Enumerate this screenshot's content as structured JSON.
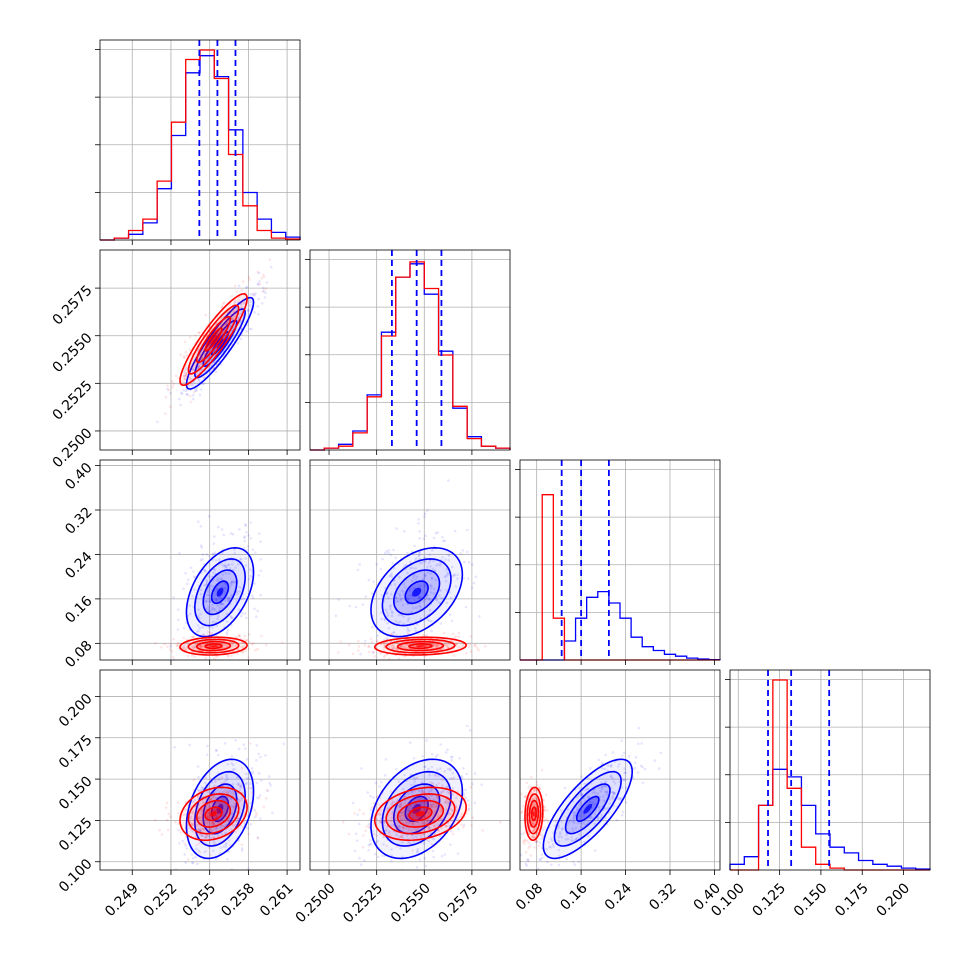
{
  "chart_data": {
    "type": "corner",
    "description_series": [
      {
        "name": "",
        "color": "#0000ff"
      },
      {
        "name": "",
        "color": "#ff0000"
      }
    ],
    "parameters": [
      {
        "ticks": [
          0.249,
          0.252,
          0.255,
          0.258,
          0.261
        ],
        "tick_labels": [
          "0.249",
          "0.252",
          "0.255",
          "0.258",
          "0.261"
        ],
        "range": [
          0.2465,
          0.262
        ]
      },
      {
        "ticks": [
          0.25,
          0.2525,
          0.255,
          0.2575
        ],
        "tick_labels": [
          "0.2500",
          "0.2525",
          "0.2550",
          "0.2575"
        ],
        "range": [
          0.249,
          0.2595
        ]
      },
      {
        "ticks": [
          0.08,
          0.16,
          0.24,
          0.32,
          0.4
        ],
        "tick_labels": [
          "0.08",
          "0.16",
          "0.24",
          "0.32",
          "0.40"
        ],
        "range": [
          0.05,
          0.41
        ]
      },
      {
        "ticks": [
          0.1,
          0.125,
          0.15,
          0.175,
          0.2
        ],
        "tick_labels": [
          "0.100",
          "0.125",
          "0.150",
          "0.175",
          "0.200"
        ],
        "range": [
          0.095,
          0.216
        ]
      }
    ],
    "grid": true,
    "series": [
      {
        "name": "",
        "color": "#0000ff",
        "means": [
          0.2558,
          0.2546,
          0.172,
          0.132
        ],
        "sigmas": [
          0.0013,
          0.0012,
          0.04,
          0.015
        ],
        "correlations": [
          [
            1,
            0.9,
            0.45,
            0.35
          ],
          [
            0.9,
            1,
            0.4,
            0.35
          ],
          [
            0.45,
            0.4,
            1,
            0.75
          ],
          [
            0.35,
            0.35,
            0.75,
            1
          ]
        ],
        "quantiles": [
          [
            0.2542,
            0.2556,
            0.257
          ],
          [
            0.2533,
            0.2546,
            0.2559
          ],
          [
            0.125,
            0.16,
            0.21
          ],
          [
            0.118,
            0.132,
            0.155
          ]
        ],
        "hist": [
          [
            0.0,
            0.01,
            0.03,
            0.09,
            0.27,
            0.55,
            0.88,
            0.97,
            0.86,
            0.58,
            0.25,
            0.11,
            0.04,
            0.015
          ],
          [
            0.0,
            0.01,
            0.03,
            0.1,
            0.29,
            0.62,
            0.91,
            0.98,
            0.82,
            0.52,
            0.22,
            0.07,
            0.02,
            0.01
          ],
          [
            0.0,
            0.0,
            0.0,
            0.0,
            0.1,
            0.22,
            0.33,
            0.36,
            0.3,
            0.22,
            0.12,
            0.07,
            0.05,
            0.03,
            0.02,
            0.01,
            0.005,
            0.002
          ],
          [
            0.03,
            0.07,
            0.34,
            0.53,
            0.49,
            0.34,
            0.19,
            0.12,
            0.09,
            0.05,
            0.03,
            0.02,
            0.01,
            0.005
          ]
        ]
      },
      {
        "name": "",
        "color": "#ff0000",
        "means": [
          0.2553,
          0.2548,
          0.075,
          0.129
        ],
        "sigmas": [
          0.0013,
          0.0012,
          0.008,
          0.008
        ],
        "correlations": [
          [
            1,
            0.9,
            0.1,
            0.25
          ],
          [
            0.9,
            1,
            0.1,
            0.25
          ],
          [
            0.1,
            0.1,
            1,
            0.1
          ],
          [
            0.25,
            0.25,
            0.1,
            1
          ]
        ],
        "hist": [
          [
            0.0,
            0.01,
            0.05,
            0.11,
            0.31,
            0.62,
            0.95,
            1.0,
            0.85,
            0.45,
            0.18,
            0.05,
            0.01,
            0.005
          ],
          [
            0.0,
            0.01,
            0.02,
            0.09,
            0.28,
            0.6,
            0.91,
            0.99,
            0.85,
            0.5,
            0.23,
            0.06,
            0.02,
            0.01
          ],
          [
            0.0,
            0.0,
            0.87,
            0.22,
            0.0,
            0.0,
            0.0,
            0.0,
            0.0,
            0.0,
            0.0,
            0.0,
            0.0,
            0.0,
            0.0,
            0.0,
            0.0,
            0.0
          ],
          [
            0.0,
            0.0,
            0.34,
            1.0,
            0.43,
            0.12,
            0.03,
            0.01,
            0.0,
            0.0,
            0.0,
            0.0,
            0.0,
            0.0
          ]
        ]
      }
    ]
  }
}
